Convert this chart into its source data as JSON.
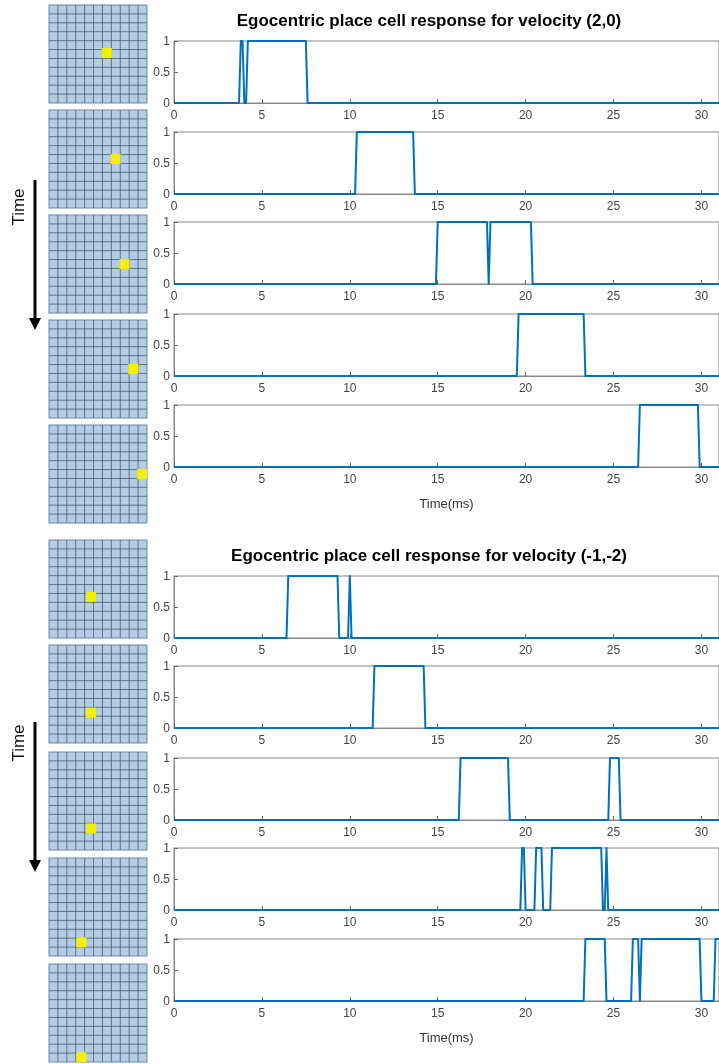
{
  "chart_data": [
    {
      "type": "line",
      "title": "Egocentric place cell response for velocity (2,0)",
      "color": "#0072bd",
      "marker": "none",
      "x": [
        0,
        3.7,
        3.8,
        3.9,
        4.0,
        4.1,
        4.2,
        7.5,
        7.6,
        31
      ],
      "values": [
        0,
        0,
        1,
        1,
        0,
        0,
        1,
        1,
        0,
        0
      ],
      "xlim": [
        0,
        31
      ],
      "xticks": [
        0,
        5,
        10,
        15,
        20,
        25,
        30
      ],
      "ylim": [
        0,
        1
      ],
      "yticks": [
        0,
        0.5,
        1
      ]
    },
    {
      "type": "line",
      "color": "#0072bd",
      "marker": "none",
      "x": [
        0,
        10.3,
        10.4,
        13.6,
        13.7,
        31
      ],
      "values": [
        0,
        0,
        1,
        1,
        0,
        0
      ],
      "xlim": [
        0,
        31
      ],
      "xticks": [
        0,
        5,
        10,
        15,
        20,
        25,
        30
      ],
      "ylim": [
        0,
        1
      ],
      "yticks": [
        0,
        0.5,
        1
      ]
    },
    {
      "type": "line",
      "color": "#0072bd",
      "marker": "none",
      "annotations": [
        "Time"
      ],
      "x": [
        0,
        14.9,
        15.0,
        17.8,
        17.9,
        18.0,
        20.3,
        20.4,
        31
      ],
      "values": [
        0,
        0,
        1,
        1,
        0,
        1,
        1,
        0,
        0
      ],
      "xlim": [
        0,
        31
      ],
      "xticks": [
        0,
        5,
        10,
        15,
        20,
        25,
        30
      ],
      "ylim": [
        0,
        1
      ],
      "yticks": [
        0,
        0.5,
        1
      ]
    },
    {
      "type": "line",
      "color": "#0072bd",
      "marker": "none",
      "x": [
        0,
        19.5,
        19.6,
        23.3,
        23.4,
        31
      ],
      "values": [
        0,
        0,
        1,
        1,
        0,
        0
      ],
      "xlim": [
        0,
        31
      ],
      "xticks": [
        0,
        5,
        10,
        15,
        20,
        25,
        30
      ],
      "ylim": [
        0,
        1
      ],
      "yticks": [
        0,
        0.5,
        1
      ]
    },
    {
      "type": "line",
      "color": "#0072bd",
      "marker": "none",
      "xlabel": "Time(ms)",
      "x": [
        0,
        26.4,
        26.5,
        29.8,
        29.9,
        31
      ],
      "values": [
        0,
        0,
        1,
        1,
        0,
        0
      ],
      "xlim": [
        0,
        31
      ],
      "xticks": [
        0,
        5,
        10,
        15,
        20,
        25,
        30
      ],
      "ylim": [
        0,
        1
      ],
      "yticks": [
        0,
        0.5,
        1
      ]
    },
    {
      "type": "line",
      "title": "Egocentric place cell response for velocity (-1,-2)",
      "color": "#0072bd",
      "marker": "none",
      "x": [
        0,
        6.4,
        6.5,
        9.3,
        9.4,
        9.9,
        10.0,
        10.1,
        31
      ],
      "values": [
        0,
        0,
        1,
        1,
        0,
        0,
        1,
        0,
        0
      ],
      "xlim": [
        0,
        31
      ],
      "xticks": [
        0,
        5,
        10,
        15,
        20,
        25,
        30
      ],
      "ylim": [
        0,
        1
      ],
      "yticks": [
        0,
        0.5,
        1
      ]
    },
    {
      "type": "line",
      "color": "#0072bd",
      "marker": "none",
      "x": [
        0,
        11.3,
        11.4,
        14.2,
        14.3,
        31
      ],
      "values": [
        0,
        0,
        1,
        1,
        0,
        0
      ],
      "xlim": [
        0,
        31
      ],
      "xticks": [
        0,
        5,
        10,
        15,
        20,
        25,
        30
      ],
      "ylim": [
        0,
        1
      ],
      "yticks": [
        0,
        0.5,
        1
      ]
    },
    {
      "type": "line",
      "color": "#0072bd",
      "marker": "none",
      "annotations": [
        "Time"
      ],
      "x": [
        0,
        16.2,
        16.3,
        19.0,
        19.1,
        24.7,
        24.8,
        25.3,
        25.4,
        31
      ],
      "values": [
        0,
        0,
        1,
        1,
        0,
        0,
        1,
        1,
        0,
        0
      ],
      "xlim": [
        0,
        31
      ],
      "xticks": [
        0,
        5,
        10,
        15,
        20,
        25,
        30
      ],
      "ylim": [
        0,
        1
      ],
      "yticks": [
        0,
        0.5,
        1
      ]
    },
    {
      "type": "line",
      "color": "#0072bd",
      "marker": "none",
      "x": [
        0,
        19.7,
        19.8,
        19.9,
        20.0,
        20.5,
        20.6,
        20.9,
        21.0,
        21.4,
        21.5,
        24.3,
        24.4,
        24.5,
        24.6,
        24.7,
        31
      ],
      "values": [
        0,
        0,
        1,
        1,
        0,
        0,
        1,
        1,
        0,
        0,
        1,
        1,
        0,
        0,
        1,
        0,
        0
      ],
      "xlim": [
        0,
        31
      ],
      "xticks": [
        0,
        5,
        10,
        15,
        20,
        25,
        30
      ],
      "ylim": [
        0,
        1
      ],
      "yticks": [
        0,
        0.5,
        1
      ]
    },
    {
      "type": "line",
      "color": "#0072bd",
      "marker": "none",
      "xlabel": "Time(ms)",
      "x": [
        0,
        23.3,
        23.4,
        24.5,
        24.6,
        26.0,
        26.1,
        26.4,
        26.5,
        26.6,
        29.9,
        30.0,
        30.7,
        30.8,
        31
      ],
      "values": [
        0,
        0,
        1,
        1,
        0,
        0,
        1,
        1,
        0,
        1,
        1,
        0,
        0,
        1,
        1
      ],
      "xlim": [
        0,
        31
      ],
      "xticks": [
        0,
        5,
        10,
        15,
        20,
        25,
        30
      ],
      "ylim": [
        0,
        1
      ],
      "yticks": [
        0,
        0.5,
        1
      ]
    }
  ]
}
